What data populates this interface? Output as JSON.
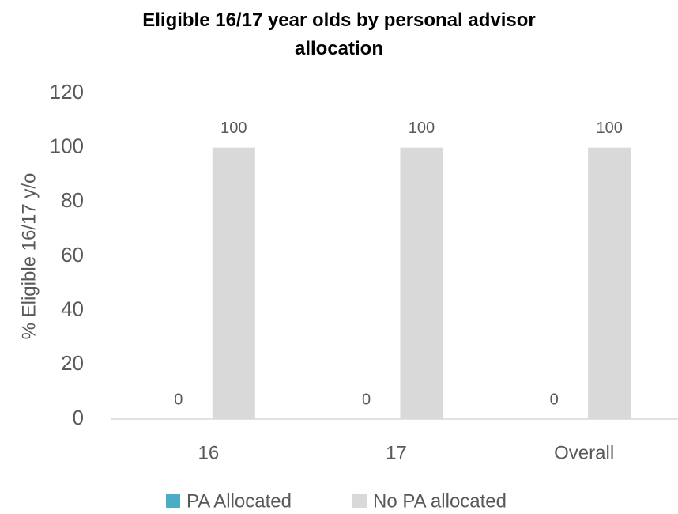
{
  "chart_data": {
    "type": "bar",
    "title": "Eligible 16/17 year olds by personal advisor allocation",
    "y_label": "% Eligible 16/17 y/o",
    "categories": [
      "16",
      "17",
      "Overall"
    ],
    "series": [
      {
        "name": "PA Allocated",
        "color": "#4bacc6",
        "values": [
          0,
          0,
          0
        ]
      },
      {
        "name": "No PA allocated",
        "color": "#d9d9d9",
        "values": [
          100,
          100,
          100
        ]
      }
    ],
    "ylim": [
      0,
      120
    ],
    "yticks": [
      0,
      20,
      40,
      60,
      80,
      100,
      120
    ],
    "grid": false,
    "legend": "bottom"
  }
}
